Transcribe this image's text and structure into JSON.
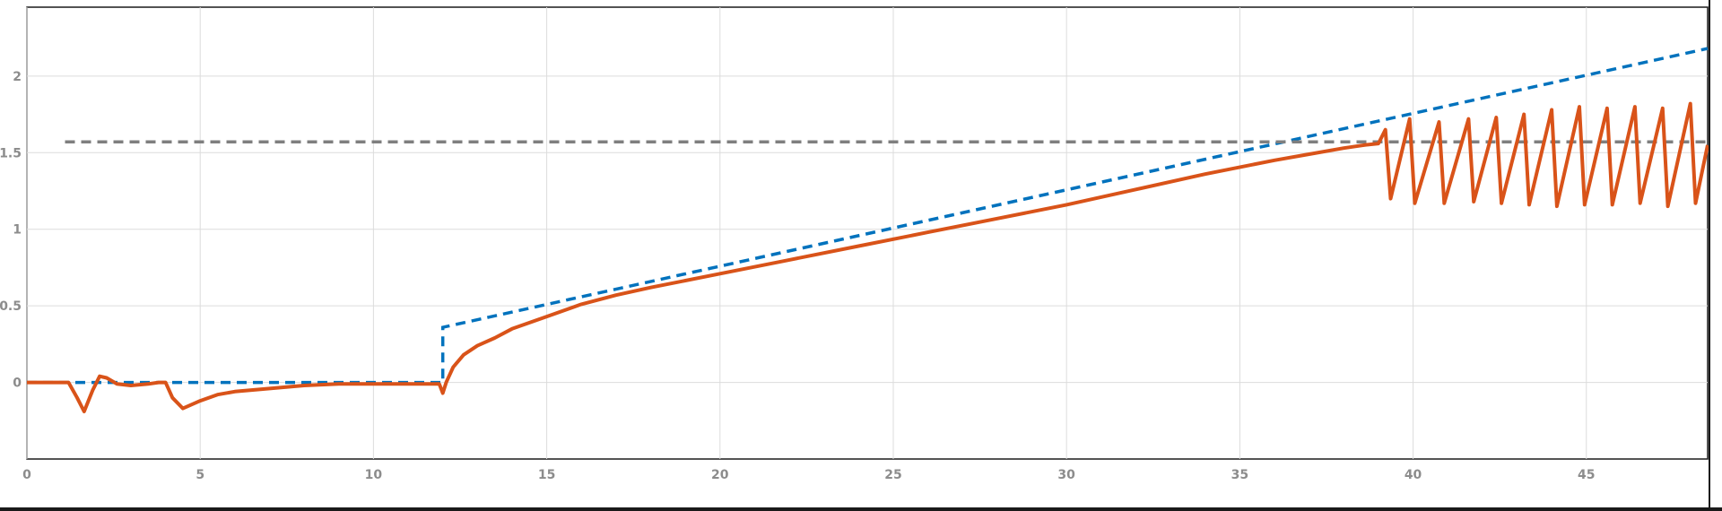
{
  "chart_data": {
    "type": "line",
    "title": "",
    "xlabel": "",
    "ylabel": "",
    "xlim": [
      0,
      48.5
    ],
    "ylim": [
      -0.5,
      2.45
    ],
    "x_ticks": [
      "0",
      "5",
      "10",
      "15",
      "20",
      "25",
      "30",
      "35",
      "40",
      "45"
    ],
    "y_ticks": [
      "0",
      "0.5",
      "1",
      "1.5",
      "2"
    ],
    "grid": true,
    "legend": "none",
    "series": [
      {
        "name": "",
        "color": "#0072bd",
        "style": "dashed",
        "x": [
          0,
          12.0,
          12.0,
          48.5
        ],
        "y": [
          0,
          0,
          0.36,
          2.18
        ]
      },
      {
        "name": "",
        "color": "#7f7f7f",
        "style": "dashed",
        "x": [
          1.1,
          48.5
        ],
        "y": [
          1.57,
          1.57
        ]
      },
      {
        "name": "",
        "color": "#d95319",
        "style": "solid",
        "x": [
          0,
          1.2,
          1.45,
          1.65,
          1.9,
          2.1,
          2.3,
          2.6,
          3.0,
          3.5,
          3.8,
          4.0,
          4.2,
          4.5,
          5.0,
          5.5,
          6.0,
          7.0,
          8.0,
          9.0,
          10.0,
          11.0,
          11.9,
          12.0,
          12.1,
          12.3,
          12.6,
          13.0,
          13.5,
          14.0,
          15.0,
          16.0,
          17.0,
          18.0,
          20.0,
          22.0,
          24.0,
          26.0,
          28.0,
          30.0,
          32.0,
          34.0,
          36.0,
          37.0,
          38.0,
          38.6,
          39.0,
          39.2,
          39.35,
          39.9,
          40.05,
          40.75,
          40.9,
          41.6,
          41.75,
          42.4,
          42.55,
          43.2,
          43.35,
          44.0,
          44.15,
          44.8,
          44.95,
          45.6,
          45.75,
          46.4,
          46.55,
          47.2,
          47.35,
          48.0,
          48.15,
          48.5
        ],
        "y": [
          0,
          0,
          -0.1,
          -0.19,
          -0.05,
          0.04,
          0.03,
          -0.01,
          -0.02,
          -0.01,
          0.0,
          0.0,
          -0.1,
          -0.17,
          -0.12,
          -0.08,
          -0.06,
          -0.04,
          -0.02,
          -0.01,
          -0.01,
          -0.01,
          -0.01,
          -0.07,
          0.0,
          0.1,
          0.18,
          0.24,
          0.29,
          0.35,
          0.43,
          0.51,
          0.57,
          0.62,
          0.71,
          0.8,
          0.89,
          0.98,
          1.07,
          1.16,
          1.26,
          1.36,
          1.45,
          1.49,
          1.53,
          1.55,
          1.56,
          1.65,
          1.2,
          1.72,
          1.17,
          1.7,
          1.17,
          1.72,
          1.18,
          1.73,
          1.17,
          1.75,
          1.16,
          1.78,
          1.15,
          1.8,
          1.16,
          1.79,
          1.16,
          1.8,
          1.17,
          1.79,
          1.15,
          1.82,
          1.17,
          1.55
        ]
      }
    ]
  }
}
